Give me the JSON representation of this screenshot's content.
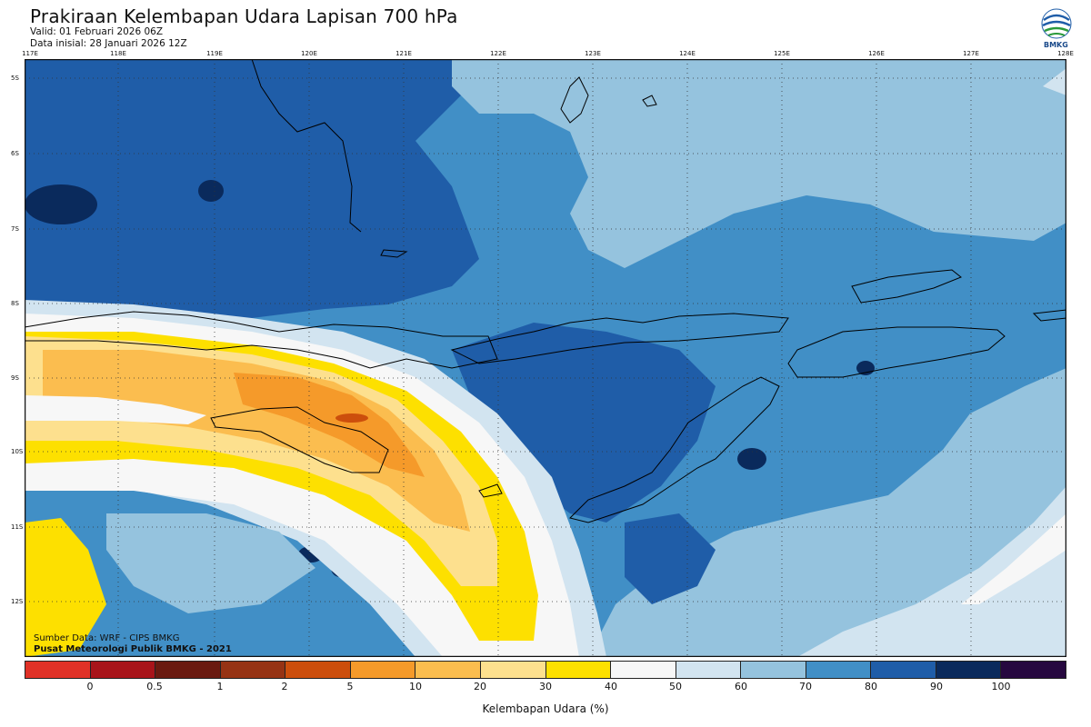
{
  "header": {
    "title": "Prakiraan Kelembapan Udara Lapisan 700 hPa",
    "valid": "Valid: 01 Februari 2026 06Z",
    "init": "Data inisial: 28 Januari 2026 12Z",
    "logo_text": "BMKG"
  },
  "axes": {
    "lon_labels": [
      "117E",
      "118E",
      "119E",
      "120E",
      "121E",
      "122E",
      "123E",
      "124E",
      "125E",
      "126E",
      "127E",
      "128E"
    ],
    "lat_labels": [
      "5S",
      "6S",
      "7S",
      "8S",
      "9S",
      "10S",
      "11S",
      "12S"
    ]
  },
  "credits": {
    "source": "Sumber Data: WRF - CIPS BMKG",
    "org": "Pusat Meteorologi Publik BMKG - 2021"
  },
  "legend": {
    "title": "Kelembapan Udara (%)",
    "ticks": [
      "0",
      "0.5",
      "1",
      "2",
      "5",
      "10",
      "20",
      "30",
      "40",
      "50",
      "60",
      "70",
      "80",
      "90",
      "100"
    ],
    "colors": [
      "#e03127",
      "#a8141a",
      "#6a1a10",
      "#963314",
      "#cc4e0c",
      "#f59a2a",
      "#fbbd4f",
      "#fde08e",
      "#fde000",
      "#f7f7f7",
      "#d2e4f0",
      "#95c3de",
      "#418fc6",
      "#1f5da8",
      "#0a2a5c",
      "#26083f"
    ]
  },
  "map_colors": {
    "c40": "#fde000",
    "c30": "#fde08e",
    "c20": "#fbbd4f",
    "c10": "#f59a2a",
    "c5": "#cc4e0c",
    "c50": "#f7f7f7",
    "c60": "#d2e4f0",
    "c70": "#95c3de",
    "c80": "#418fc6",
    "c90": "#1f5da8",
    "c100": "#0a2a5c"
  }
}
